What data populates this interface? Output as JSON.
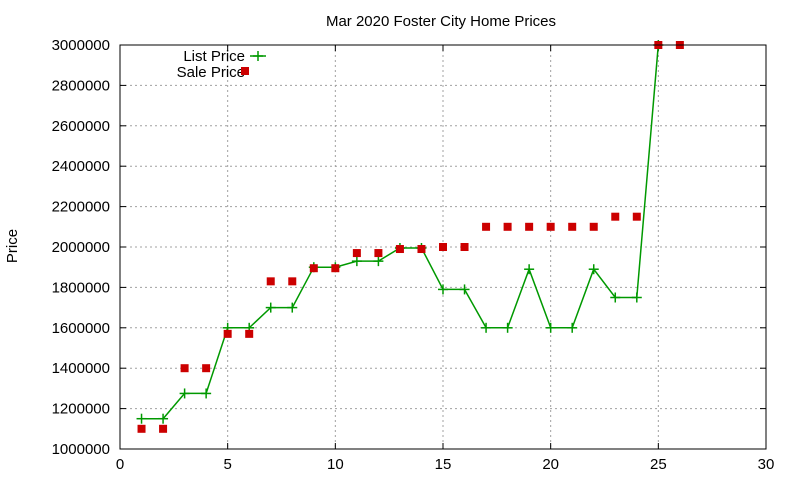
{
  "chart_data": {
    "type": "line",
    "title": "Mar 2020 Foster City Home Prices",
    "xlabel": "",
    "ylabel": "Price",
    "xlim": [
      0,
      30
    ],
    "ylim": [
      1000000,
      3000000
    ],
    "xticks": [
      0,
      5,
      10,
      15,
      20,
      25,
      30
    ],
    "yticks": [
      1000000,
      1200000,
      1400000,
      1600000,
      1800000,
      2000000,
      2200000,
      2400000,
      2600000,
      2800000,
      3000000
    ],
    "grid": true,
    "legend_position": "top-left",
    "series": [
      {
        "name": "List Price",
        "style": "line-plus",
        "color": "#009900",
        "x": [
          1,
          2,
          3,
          4,
          5,
          6,
          7,
          8,
          9,
          10,
          11,
          12,
          13,
          14,
          15,
          16,
          17,
          18,
          19,
          20,
          21,
          22,
          23,
          24,
          25
        ],
        "y": [
          1150000,
          1150000,
          1275000,
          1275000,
          1600000,
          1600000,
          1700000,
          1700000,
          1900000,
          1900000,
          1930000,
          1930000,
          1995000,
          1995000,
          1790000,
          1790000,
          1600000,
          1600000,
          1890000,
          1600000,
          1600000,
          1890000,
          1750000,
          1750000,
          3000000
        ]
      },
      {
        "name": "Sale Price",
        "style": "points-square",
        "color": "#cc0000",
        "x": [
          1,
          2,
          3,
          4,
          5,
          6,
          7,
          8,
          9,
          10,
          11,
          12,
          13,
          14,
          15,
          16,
          17,
          18,
          19,
          20,
          21,
          22,
          23,
          24,
          25,
          26
        ],
        "y": [
          1100000,
          1100000,
          1400000,
          1400000,
          1570000,
          1570000,
          1830000,
          1830000,
          1895000,
          1895000,
          1970000,
          1970000,
          1990000,
          1990000,
          2000000,
          2000000,
          2100000,
          2100000,
          2100000,
          2100000,
          2100000,
          2100000,
          2150000,
          2150000,
          3000000,
          3000000
        ]
      }
    ]
  }
}
